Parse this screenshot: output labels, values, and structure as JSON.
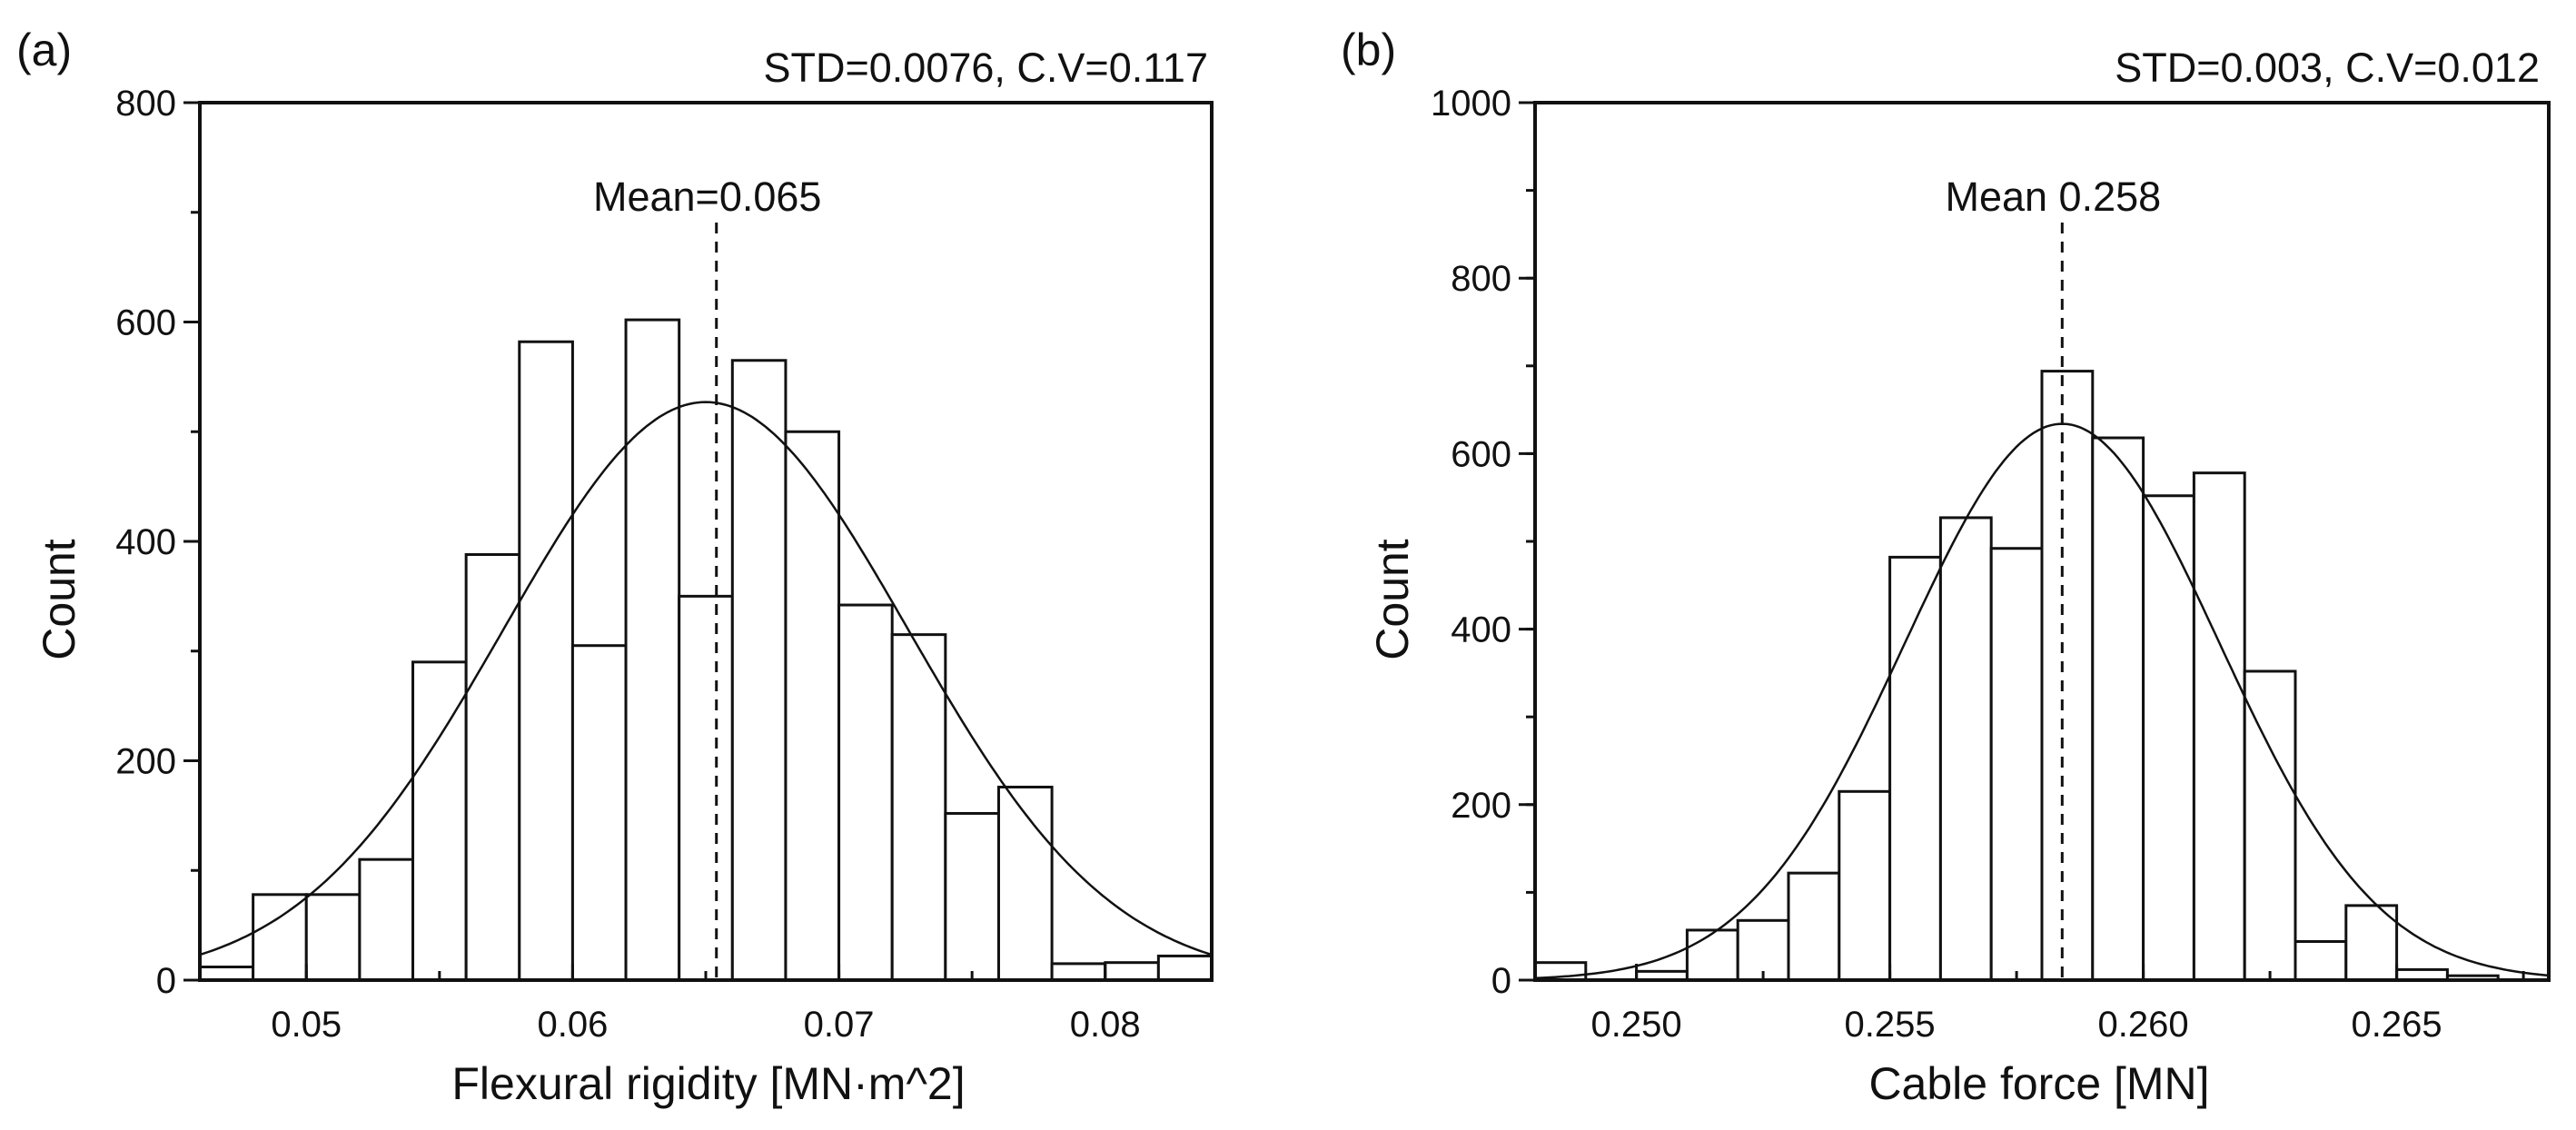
{
  "chart_data": [
    {
      "type": "bar",
      "id": "a",
      "panel_label": "(a)",
      "stat_text": "STD=0.0076, C.V=0.117",
      "mean_label": "Mean=0.065",
      "mean_value": 0.0654,
      "xlabel": "Flexural rigidity [MN·m^2]",
      "ylabel": "Count",
      "xlim": [
        0.046,
        0.084
      ],
      "ylim": [
        0,
        800
      ],
      "x_ticks": [
        0.05,
        0.06,
        0.07,
        0.08
      ],
      "x_tick_labels": [
        "0.05",
        "0.06",
        "0.07",
        "0.08"
      ],
      "y_ticks": [
        0,
        200,
        400,
        600,
        800
      ],
      "y_tick_labels": [
        "0",
        "200",
        "400",
        "600",
        "800"
      ],
      "bin_width": 0.002,
      "bins_start": [
        0.046,
        0.048,
        0.05,
        0.052,
        0.054,
        0.056,
        0.058,
        0.06,
        0.062,
        0.064,
        0.066,
        0.068,
        0.07,
        0.072,
        0.074,
        0.076,
        0.078,
        0.08,
        0.082
      ],
      "values": [
        12,
        78,
        78,
        110,
        290,
        388,
        582,
        305,
        602,
        350,
        565,
        500,
        342,
        315,
        152,
        176,
        15,
        16,
        22
      ],
      "fit": {
        "kind": "normal",
        "mean": 0.065,
        "std": 0.0076,
        "peak": 527
      }
    },
    {
      "type": "bar",
      "id": "b",
      "panel_label": "(b)",
      "stat_text": "STD=0.003, C.V=0.012",
      "mean_label": "Mean 0.258",
      "mean_value": 0.2584,
      "xlabel": "Cable force [MN]",
      "ylabel": "Count",
      "xlim": [
        0.248,
        0.268
      ],
      "ylim": [
        0,
        1000
      ],
      "x_ticks": [
        0.25,
        0.255,
        0.26,
        0.265
      ],
      "x_tick_labels": [
        "0.250",
        "0.255",
        "0.260",
        "0.265"
      ],
      "y_ticks": [
        0,
        200,
        400,
        600,
        800,
        1000
      ],
      "y_tick_labels": [
        "0",
        "200",
        "400",
        "600",
        "800",
        "1000"
      ],
      "bin_width": 0.001,
      "bins_start": [
        0.248,
        0.249,
        0.25,
        0.251,
        0.252,
        0.253,
        0.254,
        0.255,
        0.256,
        0.257,
        0.258,
        0.259,
        0.26,
        0.261,
        0.262,
        0.263,
        0.264,
        0.265,
        0.266,
        0.267
      ],
      "values": [
        20,
        0,
        10,
        57,
        68,
        122,
        215,
        482,
        527,
        492,
        694,
        618,
        552,
        578,
        352,
        44,
        85,
        12,
        5,
        0
      ],
      "fit": {
        "kind": "normal",
        "mean": 0.2584,
        "std": 0.0031,
        "peak": 634
      }
    }
  ]
}
